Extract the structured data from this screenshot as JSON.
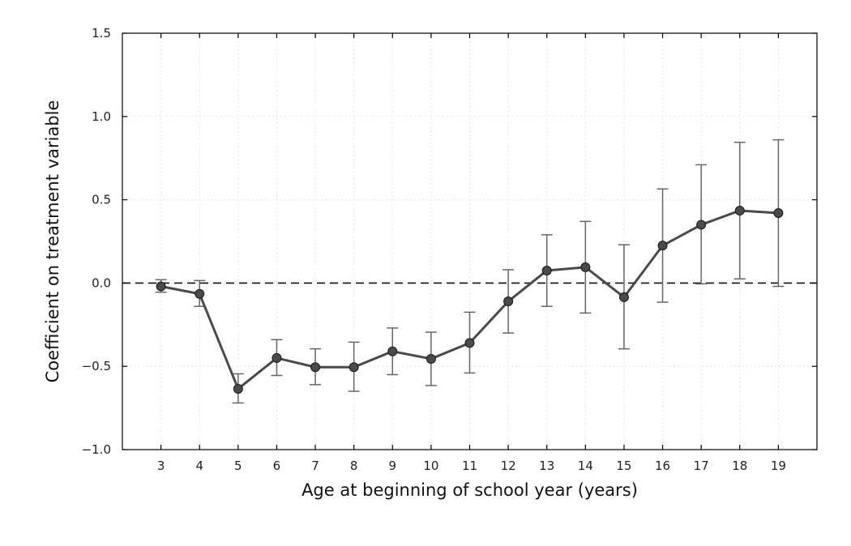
{
  "chart_data": {
    "type": "line",
    "xlabel": "Age at beginning of school year (years)",
    "ylabel": "Coefficient on treatment variable",
    "x": [
      3,
      4,
      5,
      6,
      7,
      8,
      9,
      10,
      11,
      12,
      13,
      14,
      15,
      16,
      17,
      18,
      19
    ],
    "x_ticks": [
      "3",
      "4",
      "5",
      "6",
      "7",
      "8",
      "9",
      "10",
      "11",
      "12",
      "13",
      "14",
      "15",
      "16",
      "17",
      "18",
      "19"
    ],
    "xlim": [
      2,
      20
    ],
    "y_ticks": [
      "1.5",
      "1.0",
      "0.5",
      "0.0",
      "−0.5",
      "−1.0"
    ],
    "ylim": [
      -1.0,
      1.5
    ],
    "grid": true,
    "reference_line": {
      "y": 0.0,
      "style": "dashed"
    },
    "series": [
      {
        "values": [
          -0.02,
          -0.065,
          -0.635,
          -0.45,
          -0.505,
          -0.505,
          -0.41,
          -0.455,
          -0.36,
          -0.11,
          0.075,
          0.095,
          -0.085,
          0.225,
          0.35,
          0.435,
          0.42
        ],
        "error_low": [
          -0.055,
          -0.14,
          -0.72,
          -0.555,
          -0.61,
          -0.65,
          -0.55,
          -0.615,
          -0.54,
          -0.3,
          -0.14,
          -0.18,
          -0.395,
          -0.115,
          -0.005,
          0.025,
          -0.02
        ],
        "error_high": [
          0.02,
          0.015,
          -0.545,
          -0.34,
          -0.395,
          -0.355,
          -0.27,
          -0.295,
          -0.175,
          0.08,
          0.29,
          0.37,
          0.23,
          0.565,
          0.71,
          0.845,
          0.86
        ]
      }
    ],
    "colors": {
      "line": "#4a4a4a",
      "marker": "#4a4a4a",
      "error_bar": "#666666",
      "reference_line": "#111111",
      "frame": "#000000",
      "grid": "#e6e6e6"
    }
  }
}
